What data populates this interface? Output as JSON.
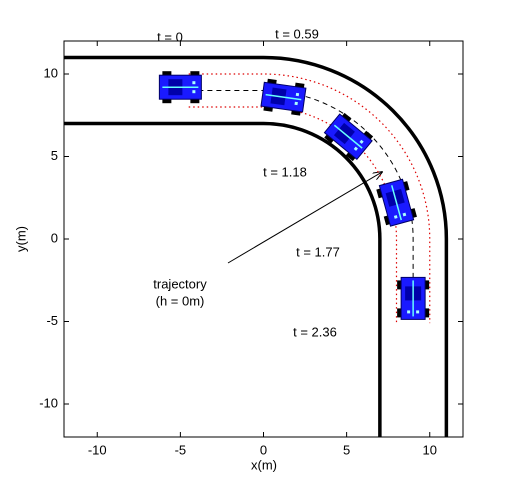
{
  "chart_data": {
    "type": "line",
    "xlabel": "x(m)",
    "ylabel": "y(m)",
    "xlim": [
      -12,
      12
    ],
    "ylim": [
      -12,
      12
    ],
    "xticks": [
      -10,
      -5,
      0,
      5,
      10
    ],
    "yticks": [
      -10,
      -5,
      0,
      5,
      10
    ],
    "boundaries": [
      7,
      11
    ],
    "envelope": [
      8,
      10
    ],
    "trajectory_radius": 9,
    "vehicles": {
      "x": [
        -5,
        1.2,
        5.1,
        8,
        9
      ],
      "y": [
        9.2,
        8.6,
        6.2,
        2.2,
        -3.6
      ]
    },
    "annotations": [
      "t = 0",
      "t = 0.59",
      "t = 1.18",
      "t = 1.77",
      "t = 2.36",
      "trajectory",
      "(h = 0m)"
    ]
  }
}
